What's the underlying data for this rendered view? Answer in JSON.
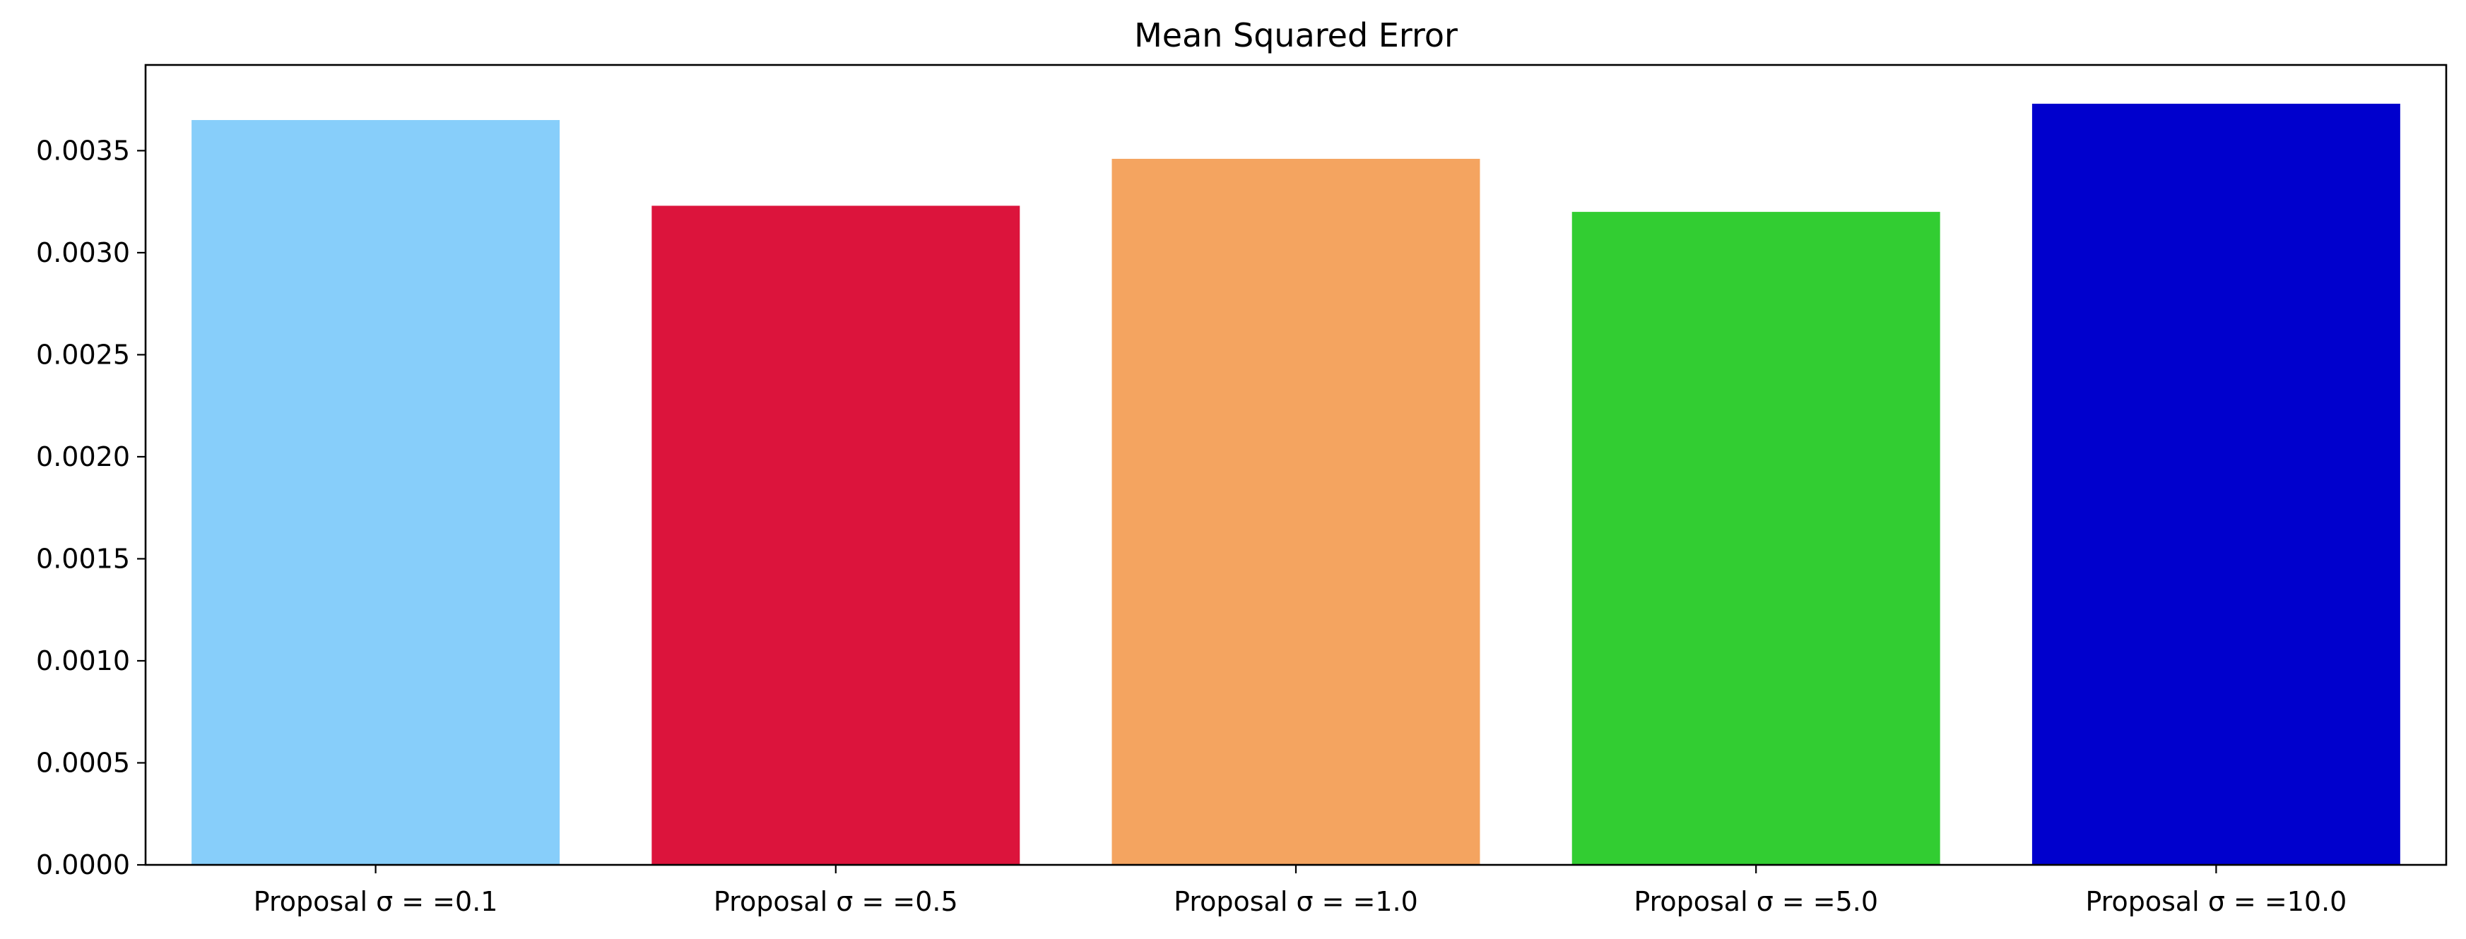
{
  "chart_data": {
    "type": "bar",
    "title": "Mean Squared Error",
    "xlabel": "",
    "ylabel": "",
    "categories": [
      "Proposal σ = =0.1",
      "Proposal σ = =0.5",
      "Proposal σ = =1.0",
      "Proposal σ = =5.0",
      "Proposal σ = =10.0"
    ],
    "values": [
      0.00365,
      0.00323,
      0.00346,
      0.0032,
      0.00373
    ],
    "colors": [
      "#87cefa",
      "#dc143c",
      "#f4a460",
      "#32cd32",
      "#0000cd"
    ],
    "ylim": [
      0,
      0.00392
    ],
    "yticks": [
      "0.0000",
      "0.0005",
      "0.0010",
      "0.0015",
      "0.0020",
      "0.0025",
      "0.0030",
      "0.0035"
    ],
    "ytick_values": [
      0,
      0.0005,
      0.001,
      0.0015,
      0.002,
      0.0025,
      0.003,
      0.0035
    ],
    "grid": false,
    "legend": "none"
  }
}
